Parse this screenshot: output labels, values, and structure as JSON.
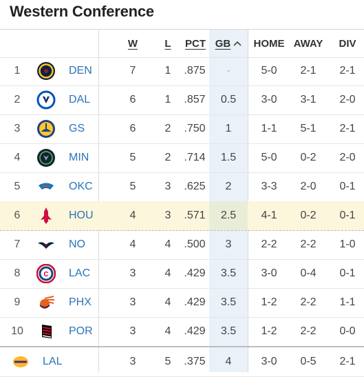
{
  "title": "Western Conference",
  "headers": {
    "w": "W",
    "l": "L",
    "pct": "PCT",
    "gb": "GB",
    "sort_arrow": "^",
    "home": "HOME",
    "away": "AWAY",
    "div": "DIV"
  },
  "teams": [
    {
      "rank": "1",
      "abbr": "DEN",
      "w": "7",
      "l": "1",
      "pct": ".875",
      "gb": "-",
      "home": "5-0",
      "away": "2-1",
      "div": "2-1",
      "logo": "nuggets-logo-icon",
      "color": "#0E2240"
    },
    {
      "rank": "2",
      "abbr": "DAL",
      "w": "6",
      "l": "1",
      "pct": ".857",
      "gb": "0.5",
      "home": "3-0",
      "away": "3-1",
      "div": "2-0",
      "logo": "mavericks-logo-icon",
      "color": "#0053BC"
    },
    {
      "rank": "3",
      "abbr": "GS",
      "w": "6",
      "l": "2",
      "pct": ".750",
      "gb": "1",
      "home": "1-1",
      "away": "5-1",
      "div": "2-1",
      "logo": "warriors-logo-icon",
      "color": "#1D428A"
    },
    {
      "rank": "4",
      "abbr": "MIN",
      "w": "5",
      "l": "2",
      "pct": ".714",
      "gb": "1.5",
      "home": "5-0",
      "away": "0-2",
      "div": "2-0",
      "logo": "timberwolves-logo-icon",
      "color": "#0C2340"
    },
    {
      "rank": "5",
      "abbr": "OKC",
      "w": "5",
      "l": "3",
      "pct": ".625",
      "gb": "2",
      "home": "3-3",
      "away": "2-0",
      "div": "0-1",
      "logo": "thunder-logo-icon",
      "color": "#007AC1"
    },
    {
      "rank": "6",
      "abbr": "HOU",
      "w": "4",
      "l": "3",
      "pct": ".571",
      "gb": "2.5",
      "home": "4-1",
      "away": "0-2",
      "div": "0-1",
      "logo": "rockets-logo-icon",
      "color": "#CE1141"
    },
    {
      "rank": "7",
      "abbr": "NO",
      "w": "4",
      "l": "4",
      "pct": ".500",
      "gb": "3",
      "home": "2-2",
      "away": "2-2",
      "div": "1-0",
      "logo": "pelicans-logo-icon",
      "color": "#0C2340"
    },
    {
      "rank": "8",
      "abbr": "LAC",
      "w": "3",
      "l": "4",
      "pct": ".429",
      "gb": "3.5",
      "home": "3-0",
      "away": "0-4",
      "div": "0-1",
      "logo": "clippers-logo-icon",
      "color": "#C8102E"
    },
    {
      "rank": "9",
      "abbr": "PHX",
      "w": "3",
      "l": "4",
      "pct": ".429",
      "gb": "3.5",
      "home": "1-2",
      "away": "2-2",
      "div": "1-1",
      "logo": "suns-logo-icon",
      "color": "#E56020"
    },
    {
      "rank": "10",
      "abbr": "POR",
      "w": "3",
      "l": "4",
      "pct": ".429",
      "gb": "3.5",
      "home": "1-2",
      "away": "2-2",
      "div": "0-0",
      "logo": "blazers-logo-icon",
      "color": "#C8102E"
    },
    {
      "rank": "",
      "abbr": "LAL",
      "w": "3",
      "l": "5",
      "pct": ".375",
      "gb": "4",
      "home": "3-0",
      "away": "0-5",
      "div": "2-1",
      "logo": "lakers-logo-icon",
      "color": "#552583"
    }
  ]
}
